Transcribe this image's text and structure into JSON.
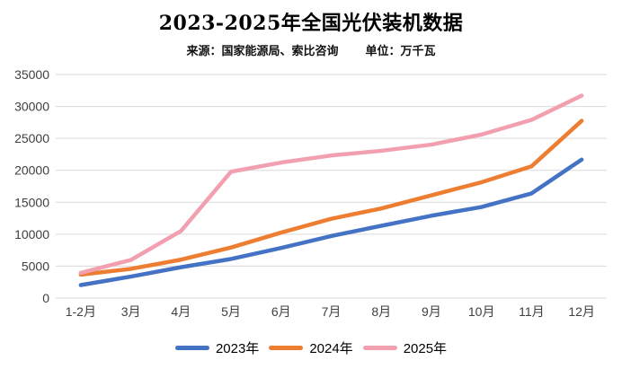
{
  "header": {
    "title": "2023-2025年全国光伏装机数据",
    "source": "来源：国家能源局、索比咨询",
    "unit": "单位：万千瓦"
  },
  "chart_data": {
    "type": "line",
    "title": "2023-2025年全国光伏装机数据",
    "source": "国家能源局、索比咨询",
    "unit_label": "万千瓦",
    "categories": [
      "1-2月",
      "3月",
      "4月",
      "5月",
      "6月",
      "7月",
      "8月",
      "9月",
      "10月",
      "11月",
      "12月"
    ],
    "series": [
      {
        "name": "2023年",
        "color": "#4472C4",
        "values": [
          2037,
          3366,
          4831,
          6121,
          7842,
          9716,
          11316,
          12894,
          14256,
          16388,
          21688
        ]
      },
      {
        "name": "2024年",
        "color": "#ED7D31",
        "values": [
          3672,
          4574,
          6011,
          7915,
          10248,
          12417,
          14036,
          16088,
          18130,
          20632,
          27757
        ]
      },
      {
        "name": "2025年",
        "color": "#F2A0B0",
        "values": [
          3947,
          5971,
          10493,
          19785,
          21221,
          22325,
          23061,
          24027,
          25600,
          27900,
          31700
        ]
      }
    ],
    "ylim": [
      0,
      35000
    ],
    "ytick_step": 5000,
    "yticks": [
      0,
      5000,
      10000,
      15000,
      20000,
      25000,
      30000,
      35000
    ],
    "grid": true,
    "legend_position": "bottom",
    "gridline_color": "#D9D9D9",
    "axis_label_color": "#404040",
    "line_width": 4.5
  }
}
